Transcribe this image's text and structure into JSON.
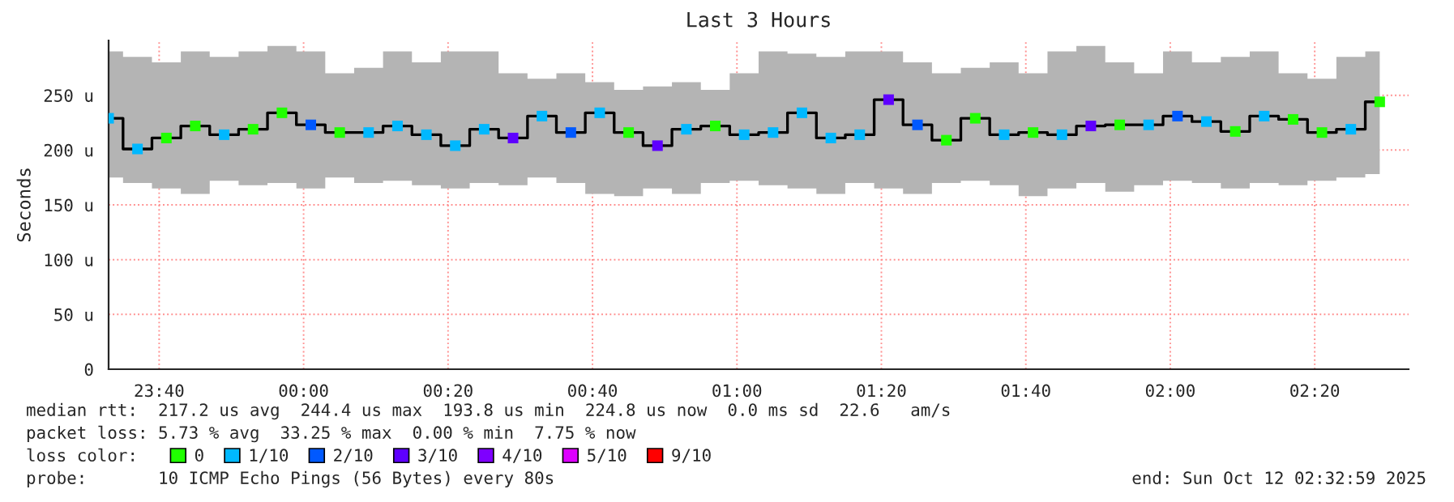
{
  "chart_data": {
    "type": "step",
    "title": "Last 3 Hours",
    "ylabel": "Seconds",
    "legend_title": "loss color:",
    "legend": "bottom",
    "grid": true,
    "line_style": "solid",
    "marker": "none",
    "x": [
      "2025-10-11T23:33",
      "2025-10-11T23:37",
      "2025-10-11T23:41",
      "2025-10-11T23:45",
      "2025-10-11T23:49",
      "2025-10-11T23:53",
      "2025-10-11T23:57",
      "2025-10-12T00:01",
      "2025-10-12T00:05",
      "2025-10-12T00:09",
      "2025-10-12T00:13",
      "2025-10-12T00:17",
      "2025-10-12T00:21",
      "2025-10-12T00:25",
      "2025-10-12T00:29",
      "2025-10-12T00:33",
      "2025-10-12T00:37",
      "2025-10-12T00:41",
      "2025-10-12T00:45",
      "2025-10-12T00:49",
      "2025-10-12T00:53",
      "2025-10-12T00:57",
      "2025-10-12T01:01",
      "2025-10-12T01:05",
      "2025-10-12T01:09",
      "2025-10-12T01:13",
      "2025-10-12T01:17",
      "2025-10-12T01:21",
      "2025-10-12T01:25",
      "2025-10-12T01:29",
      "2025-10-12T01:33",
      "2025-10-12T01:37",
      "2025-10-12T01:41",
      "2025-10-12T01:45",
      "2025-10-12T01:49",
      "2025-10-12T01:53",
      "2025-10-12T01:57",
      "2025-10-12T02:01",
      "2025-10-12T02:05",
      "2025-10-12T02:09",
      "2025-10-12T02:13",
      "2025-10-12T02:17",
      "2025-10-12T02:21",
      "2025-10-12T02:25",
      "2025-10-12T02:29"
    ],
    "xlim": [
      "2025-10-11T23:33",
      "2025-10-12T02:33"
    ],
    "xticks": [
      {
        "value": "2025-10-11T23:40",
        "label": "23:40"
      },
      {
        "value": "2025-10-12T00:00",
        "label": "00:00"
      },
      {
        "value": "2025-10-12T00:20",
        "label": "00:20"
      },
      {
        "value": "2025-10-12T00:40",
        "label": "00:40"
      },
      {
        "value": "2025-10-12T01:00",
        "label": "01:00"
      },
      {
        "value": "2025-10-12T01:20",
        "label": "01:20"
      },
      {
        "value": "2025-10-12T01:40",
        "label": "01:40"
      },
      {
        "value": "2025-10-12T02:00",
        "label": "02:00"
      },
      {
        "value": "2025-10-12T02:20",
        "label": "02:20"
      }
    ],
    "ylim": [
      0,
      300
    ],
    "yticks": [
      0,
      {
        "value": 50,
        "label": "50 u"
      },
      {
        "value": 100,
        "label": "100 u"
      },
      {
        "value": 150,
        "label": "150 u"
      },
      {
        "value": 200,
        "label": "200 u"
      },
      {
        "value": 250,
        "label": "250 u"
      }
    ],
    "series": [
      {
        "color": "#000000",
        "values": [
          229,
          201,
          211,
          222,
          214,
          219,
          234,
          223,
          216,
          216,
          222,
          214,
          204,
          219,
          211,
          231,
          216,
          234,
          216,
          204,
          219,
          222,
          214,
          216,
          234,
          211,
          214,
          246,
          223,
          209,
          229,
          214,
          216,
          214,
          222,
          223,
          223,
          231,
          226,
          217,
          231,
          228,
          216,
          219,
          244
        ],
        "lower": [
          175,
          170,
          165,
          160,
          172,
          168,
          170,
          165,
          175,
          170,
          172,
          168,
          165,
          170,
          168,
          175,
          170,
          160,
          158,
          165,
          160,
          170,
          172,
          168,
          165,
          160,
          170,
          165,
          160,
          170,
          172,
          168,
          158,
          165,
          170,
          162,
          168,
          172,
          170,
          165,
          170,
          168,
          172,
          175,
          178
        ],
        "upper": [
          290,
          285,
          280,
          290,
          285,
          290,
          295,
          290,
          270,
          275,
          290,
          280,
          290,
          290,
          270,
          265,
          270,
          262,
          255,
          258,
          262,
          255,
          270,
          290,
          288,
          285,
          290,
          290,
          280,
          270,
          275,
          280,
          270,
          290,
          295,
          280,
          270,
          290,
          280,
          285,
          290,
          270,
          265,
          285,
          290
        ]
      },
      {
        "type": "scatter",
        "marker": "square",
        "name": "0",
        "color": "#20ff00",
        "values": [
          null,
          null,
          211,
          222,
          null,
          219,
          234,
          null,
          216,
          null,
          null,
          null,
          null,
          null,
          null,
          null,
          null,
          null,
          216,
          null,
          null,
          222,
          null,
          null,
          null,
          null,
          null,
          null,
          null,
          209,
          229,
          null,
          216,
          null,
          null,
          223,
          null,
          null,
          null,
          217,
          null,
          228,
          216,
          null,
          244
        ]
      },
      {
        "type": "scatter",
        "marker": "square",
        "name": "1/10",
        "color": "#00b8ff",
        "values": [
          229,
          201,
          null,
          null,
          214,
          null,
          null,
          null,
          null,
          216,
          222,
          214,
          204,
          219,
          null,
          231,
          null,
          234,
          null,
          null,
          219,
          null,
          214,
          216,
          234,
          211,
          214,
          null,
          null,
          null,
          null,
          214,
          null,
          214,
          null,
          null,
          223,
          null,
          226,
          null,
          231,
          null,
          null,
          219,
          null
        ]
      },
      {
        "type": "scatter",
        "marker": "square",
        "name": "2/10",
        "color": "#0059ff",
        "values": [
          null,
          null,
          null,
          null,
          null,
          null,
          null,
          223,
          null,
          null,
          null,
          null,
          null,
          null,
          null,
          null,
          216,
          null,
          null,
          null,
          null,
          null,
          null,
          null,
          null,
          null,
          null,
          null,
          223,
          null,
          null,
          null,
          null,
          null,
          null,
          null,
          null,
          231,
          null,
          null,
          null,
          null,
          null,
          null,
          null
        ]
      },
      {
        "type": "scatter",
        "marker": "square",
        "name": "3/10",
        "color": "#5e00ff",
        "values": [
          null,
          null,
          null,
          null,
          null,
          null,
          null,
          null,
          null,
          null,
          null,
          null,
          null,
          null,
          211,
          null,
          null,
          null,
          null,
          204,
          null,
          null,
          null,
          null,
          null,
          null,
          null,
          246,
          null,
          null,
          null,
          null,
          null,
          null,
          222,
          null,
          null,
          null,
          null,
          null,
          null,
          null,
          null,
          null,
          null
        ]
      },
      {
        "type": "scatter",
        "marker": "square",
        "name": "4/10",
        "color": "#7e00ff",
        "values": [
          null,
          null,
          null,
          null,
          null,
          null,
          null,
          null,
          null,
          null,
          null,
          null,
          null,
          null,
          null,
          null,
          null,
          null,
          null,
          null,
          null,
          null,
          null,
          null,
          null,
          null,
          null,
          null,
          null,
          null,
          null,
          null,
          null,
          null,
          null,
          null,
          null,
          null,
          null,
          null,
          null,
          null,
          null,
          null,
          null
        ]
      },
      {
        "type": "scatter",
        "marker": "square",
        "name": "5/10",
        "color": "#dd00ff",
        "values": [
          null,
          null,
          null,
          null,
          null,
          null,
          null,
          null,
          null,
          null,
          null,
          null,
          null,
          null,
          null,
          null,
          null,
          null,
          null,
          null,
          null,
          null,
          null,
          null,
          null,
          null,
          null,
          null,
          null,
          null,
          null,
          null,
          null,
          null,
          null,
          null,
          null,
          null,
          null,
          null,
          null,
          null,
          null,
          null,
          null
        ]
      },
      {
        "type": "scatter",
        "marker": "square",
        "name": "9/10",
        "color": "#ff0000",
        "values": [
          null,
          null,
          null,
          null,
          null,
          null,
          null,
          null,
          null,
          null,
          null,
          null,
          null,
          null,
          null,
          null,
          null,
          null,
          null,
          null,
          null,
          null,
          null,
          null,
          null,
          null,
          null,
          null,
          null,
          null,
          null,
          null,
          null,
          null,
          null,
          null,
          null,
          null,
          null,
          null,
          null,
          null,
          null,
          null,
          null
        ]
      }
    ],
    "annotations": [
      "median rtt:  217.2 us avg  244.4 us max  193.8 us min  224.8 us now  0.0 ms sd  22.6   am/s",
      "packet loss: 5.73 % avg  33.25 % max  0.00 % min  7.75 % now",
      "probe:       10 ICMP Echo Pings (56 Bytes) every 80s",
      "end: Sun Oct 12 02:32:59 2025"
    ]
  }
}
